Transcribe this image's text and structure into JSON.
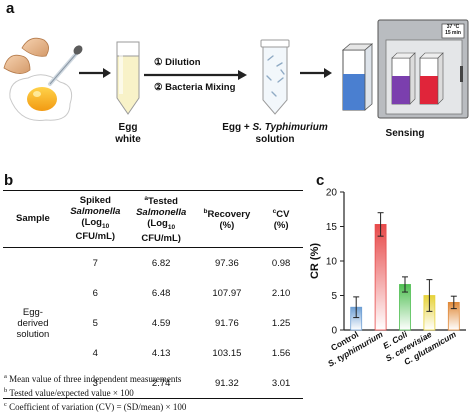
{
  "panel_a": {
    "label": "a",
    "step1": "① Dilution",
    "step2": "② Bacteria Mixing",
    "egg_white": "Egg\nwhite",
    "mixture_prefix": "Egg + ",
    "mixture_species": "S. Typhimurium",
    "mixture_suffix": "solution",
    "sensing": "Sensing",
    "incubator_temp": "37 °C",
    "incubator_time": "15 min",
    "colors": {
      "blue": "#4a7fd0",
      "purple": "#7b3fae",
      "red": "#e0253a"
    }
  },
  "panel_b": {
    "label": "b",
    "headers": {
      "sample": "Sample",
      "spiked": [
        "Spiked",
        "Salmonella",
        "(Log",
        "10",
        " CFU/mL)"
      ],
      "tested": [
        "a",
        "Tested",
        "Salmonella",
        "(Log",
        "10",
        " CFU/mL)"
      ],
      "recovery": [
        "b",
        "Recovery",
        "(%)"
      ],
      "cv": [
        "c",
        "CV",
        "(%)"
      ]
    },
    "sample_name": "Egg-\nderived\nsolution",
    "rows": [
      {
        "spiked": "7",
        "tested": "6.82",
        "recovery": "97.36",
        "cv": "0.98"
      },
      {
        "spiked": "6",
        "tested": "6.48",
        "recovery": "107.97",
        "cv": "2.10"
      },
      {
        "spiked": "5",
        "tested": "4.59",
        "recovery": "91.76",
        "cv": "1.25"
      },
      {
        "spiked": "4",
        "tested": "4.13",
        "recovery": "103.15",
        "cv": "1.56"
      },
      {
        "spiked": "3",
        "tested": "2.74",
        "recovery": "91.32",
        "cv": "3.01"
      }
    ],
    "footnotes": [
      {
        "mark": "a",
        "text": " Mean value of three independent measurements"
      },
      {
        "mark": "b",
        "text": " Tested value/expected value × 100"
      },
      {
        "mark": "c",
        "text": " Coefficient of variation (CV) = (SD/mean) × 100"
      }
    ]
  },
  "panel_c": {
    "label": "c"
  },
  "chart_data": {
    "type": "bar",
    "categories": [
      "Control",
      "S. typhimurium",
      "E. Coli",
      "S. cerevisiae",
      "C. glutamicum"
    ],
    "values": [
      3.3,
      15.3,
      6.6,
      5.0,
      4.0
    ],
    "errors": [
      1.5,
      1.7,
      1.1,
      2.3,
      0.9
    ],
    "colors": [
      "#6e9fd4",
      "#e74a4a",
      "#4fbf52",
      "#e6d23a",
      "#e08a3a"
    ],
    "ylabel": "CR (%)",
    "xlabel": "",
    "ylim": [
      0,
      20
    ],
    "yticks": [
      0,
      5,
      10,
      15,
      20
    ],
    "grid": false
  }
}
